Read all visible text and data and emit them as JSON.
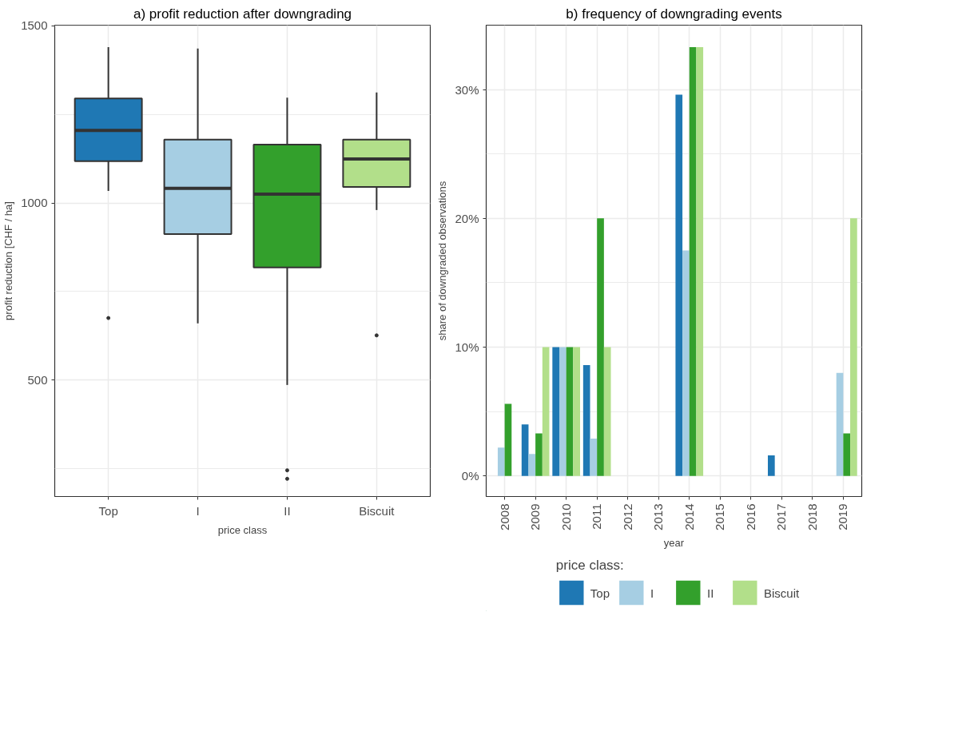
{
  "chart_data": [
    {
      "type": "box",
      "title": "a) profit reduction after downgrading",
      "xlabel": "price class",
      "ylabel": "profit reduction [CHF / ha]",
      "categories": [
        "Top",
        "I",
        "II",
        "Biscuit"
      ],
      "colors": [
        "#1f78b4",
        "#a6cee3",
        "#33a02c",
        "#b2df8a"
      ],
      "boxes": [
        {
          "low": 1034,
          "q1": 1118,
          "median": 1205,
          "q3": 1295,
          "high": 1440,
          "outliers": [
            675
          ]
        },
        {
          "low": 660,
          "q1": 912,
          "median": 1041,
          "q3": 1179,
          "high": 1436
        },
        {
          "low": 486,
          "q1": 818,
          "median": 1025,
          "q3": 1165,
          "high": 1297,
          "outliers": [
            245,
            221
          ]
        },
        {
          "low": 980,
          "q1": 1045,
          "median": 1124,
          "q3": 1179,
          "high": 1312,
          "outliers": [
            626
          ]
        }
      ],
      "ylim": [
        171,
        1502
      ],
      "yticks": [
        {
          "value": 250,
          "label": null
        },
        500,
        {
          "value": 750,
          "label": null
        },
        1000,
        {
          "value": 1250,
          "label": null
        },
        1500
      ],
      "grid": true
    },
    {
      "type": "bar",
      "title": "b) frequency of downgrading events",
      "xlabel": "year",
      "ylabel": "share of downgraded observations",
      "categories": [
        "2008",
        "2009",
        "2010",
        "2011",
        "2012",
        "2013",
        "2014",
        "2015",
        "2016",
        "2017",
        "2018",
        "2019"
      ],
      "series": [
        {
          "name": "Top",
          "color": "#1f78b4",
          "values": [
            0,
            4.0,
            10,
            8.6,
            0,
            0,
            29.6,
            0,
            0,
            1.6,
            0,
            0
          ]
        },
        {
          "name": "I",
          "color": "#a6cee3",
          "values": [
            2.2,
            1.7,
            10,
            2.9,
            0,
            0,
            17.5,
            0,
            0,
            0,
            0,
            8.0
          ]
        },
        {
          "name": "II",
          "color": "#33a02c",
          "values": [
            5.6,
            3.3,
            10,
            20,
            0,
            0,
            33.3,
            0,
            0,
            0,
            0,
            3.3
          ]
        },
        {
          "name": "Biscuit",
          "color": "#b2df8a",
          "values": [
            0,
            10,
            10,
            10,
            0,
            0,
            33.3,
            0,
            0,
            0,
            0,
            20
          ]
        }
      ],
      "ylim": [
        -1.6,
        35
      ],
      "yticks": [
        {
          "value": 0,
          "label": "0%"
        },
        {
          "value": 5,
          "label": null
        },
        {
          "value": 10,
          "label": "10%"
        },
        {
          "value": 15,
          "label": null
        },
        {
          "value": 20,
          "label": "20%"
        },
        {
          "value": 25,
          "label": null
        },
        {
          "value": 30,
          "label": "30%"
        }
      ],
      "grid": true,
      "legend": "bottom",
      "legend_title": "price class:"
    }
  ]
}
